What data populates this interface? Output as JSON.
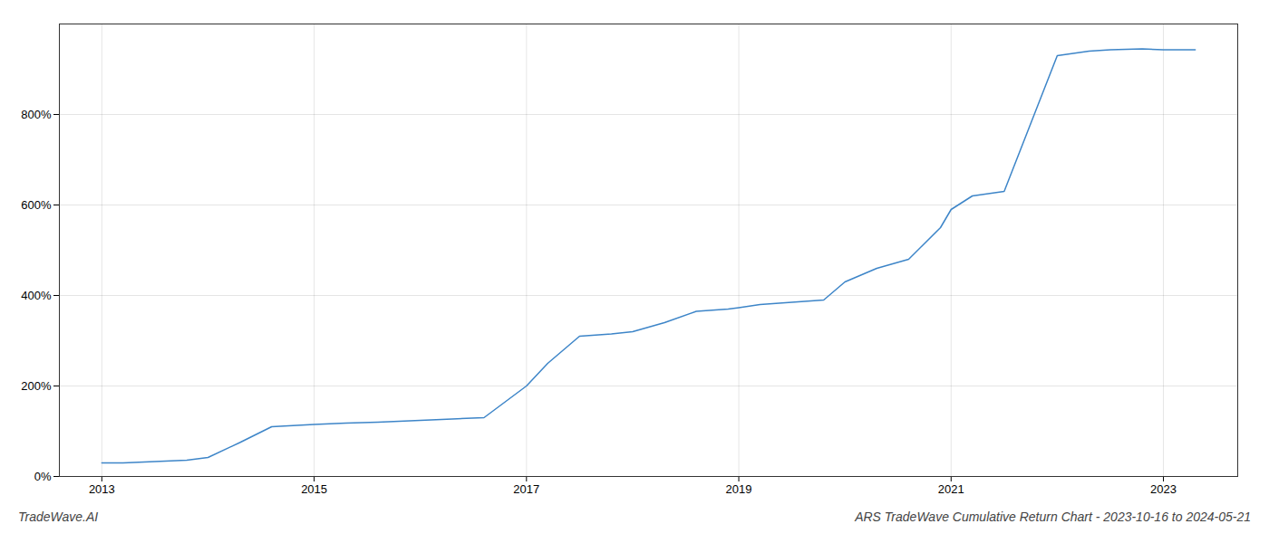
{
  "chart_data": {
    "type": "line",
    "x": [
      2013.0,
      2013.2,
      2013.5,
      2013.8,
      2014.0,
      2014.3,
      2014.6,
      2015.0,
      2015.3,
      2015.6,
      2015.9,
      2016.0,
      2016.3,
      2016.6,
      2017.0,
      2017.2,
      2017.5,
      2017.8,
      2018.0,
      2018.3,
      2018.6,
      2018.9,
      2019.0,
      2019.2,
      2019.5,
      2019.8,
      2020.0,
      2020.3,
      2020.6,
      2020.9,
      2021.0,
      2021.2,
      2021.5,
      2022.0,
      2022.3,
      2022.5,
      2022.8,
      2023.0,
      2023.3
    ],
    "values": [
      30,
      30,
      33,
      36,
      42,
      75,
      110,
      115,
      118,
      120,
      123,
      124,
      127,
      130,
      200,
      250,
      310,
      315,
      320,
      340,
      365,
      370,
      373,
      380,
      385,
      390,
      430,
      460,
      480,
      550,
      590,
      620,
      630,
      930,
      940,
      943,
      945,
      943,
      943
    ],
    "color": "#3d85c8",
    "xlim": [
      2012.6,
      2023.7
    ],
    "ylim": [
      0,
      1000
    ],
    "xticks": [
      2013,
      2015,
      2017,
      2019,
      2021,
      2023
    ],
    "yticks": [
      {
        "value": 0,
        "label": "0%"
      },
      {
        "value": 200,
        "label": "200%"
      },
      {
        "value": 400,
        "label": "400%"
      },
      {
        "value": 600,
        "label": "600%"
      },
      {
        "value": 800,
        "label": "800%"
      }
    ],
    "grid": true,
    "annotations": [
      "TradeWave.AI",
      "ARS TradeWave Cumulative Return Chart - 2023-10-16 to 2024-05-21"
    ]
  }
}
